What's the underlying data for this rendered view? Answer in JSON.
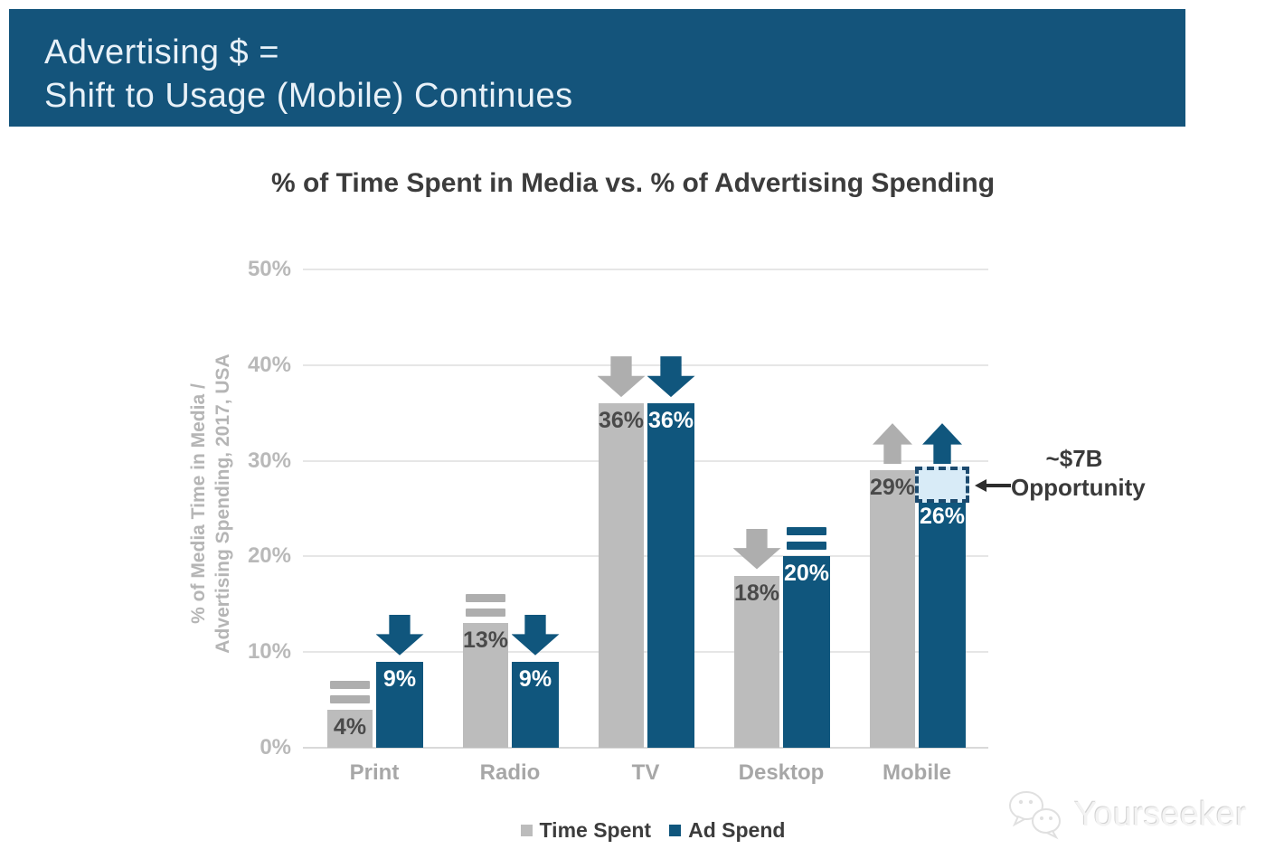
{
  "header": {
    "line1": "Advertising $ =",
    "line2": "Shift to Usage (Mobile) Continues"
  },
  "chart_data": {
    "type": "bar",
    "title": "% of Time Spent in Media vs. % of Advertising Spending",
    "ylabel": [
      "% of Media Time in Media /",
      "Advertising Spending, 2017, USA"
    ],
    "categories": [
      "Print",
      "Radio",
      "TV",
      "Desktop",
      "Mobile"
    ],
    "series": [
      {
        "name": "Time Spent",
        "color": "#bcbcbc",
        "values": [
          4,
          13,
          36,
          18,
          29
        ],
        "labels": [
          "4%",
          "13%",
          "36%",
          "18%",
          "29%"
        ],
        "trends": [
          "flat",
          "flat",
          "down",
          "down",
          "up"
        ]
      },
      {
        "name": "Ad Spend",
        "color": "#10567d",
        "values": [
          9,
          9,
          36,
          20,
          26
        ],
        "labels": [
          "9%",
          "9%",
          "36%",
          "20%",
          "26%"
        ],
        "trends": [
          "down",
          "down",
          "down",
          "flat",
          "up"
        ]
      }
    ],
    "yticks": [
      {
        "label": "50%",
        "value": 50
      },
      {
        "label": "40%",
        "value": 40
      },
      {
        "label": "30%",
        "value": 30
      },
      {
        "label": "20%",
        "value": 20
      },
      {
        "label": "10%",
        "value": 10
      },
      {
        "label": "0%",
        "value": 0
      }
    ],
    "ylim": [
      0,
      50
    ],
    "grid": true,
    "legend_position": "bottom",
    "annotation": {
      "line1": "~$7B",
      "line2": "Opportunity",
      "category": "Mobile",
      "series": "Ad Spend",
      "gap_from": 26,
      "gap_to": 29
    }
  },
  "legend": {
    "items": [
      {
        "label": "Time Spent",
        "color": "#bcbcbc"
      },
      {
        "label": "Ad Spend",
        "color": "#10567d"
      }
    ]
  },
  "watermark": {
    "text": "Yourseeker"
  },
  "colors": {
    "banner_bg": "#14547b",
    "banner_text": "#e8f1f8",
    "bar_gray": "#bcbcbc",
    "bar_blue": "#10567d",
    "icon_gray": "#aeaeae",
    "grid": "#e6e6e6",
    "baseline": "#d9d9d9",
    "tick_text": "#b9b9b9",
    "axis_label_text": "#b5b5b5",
    "category_text": "#a7a7a7",
    "value_dark": "#4a4a4a",
    "value_light": "#ffffff",
    "title_text": "#3c3c3c",
    "annotation_text": "#3a3a3a",
    "gap_fill": "#d8ebf7",
    "gap_border": "#1c4a6e"
  }
}
